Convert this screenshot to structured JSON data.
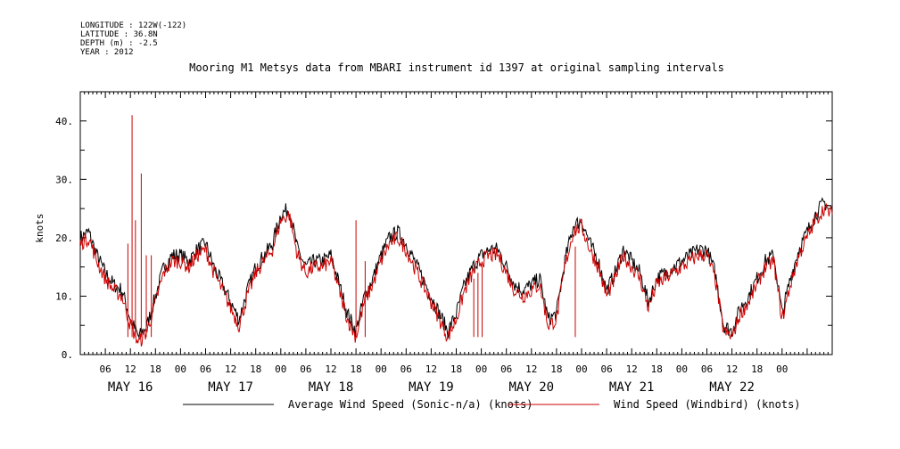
{
  "meta": [
    "LONGITUDE : 122W(-122)",
    "LATITUDE : 36.8N",
    "DEPTH (m) : -2.5",
    "YEAR : 2012"
  ],
  "chart_data": {
    "type": "line",
    "title": "Mooring M1 Metsys data from MBARI instrument id 1397 at original sampling intervals",
    "ylabel": "knots",
    "xlabel": "",
    "ylim": [
      0,
      45
    ],
    "xlim_hours": [
      0,
      180
    ],
    "x_unit": "hours since MAY 16 00",
    "yticks": [
      0,
      10,
      20,
      30,
      40
    ],
    "ytick_labels": [
      "0.",
      "10.",
      "20.",
      "30.",
      "40."
    ],
    "xticks_hour_labels": [
      "06",
      "12",
      "18",
      "00",
      "06",
      "12",
      "18",
      "00",
      "06",
      "12",
      "18",
      "00",
      "06",
      "12",
      "18",
      "00",
      "06",
      "12",
      "18",
      "00",
      "06",
      "12",
      "18",
      "00",
      "06",
      "12",
      "18",
      "00"
    ],
    "day_labels": [
      "MAY 16",
      "MAY 17",
      "MAY 18",
      "MAY 19",
      "MAY 20",
      "MAY 21",
      "MAY 22"
    ],
    "grid": false,
    "legend_position": "bottom",
    "series": [
      {
        "name": "Average Wind Speed (Sonic-n/a) (knots)",
        "color": "#000000",
        "x": [
          0,
          2,
          4,
          6,
          8,
          10,
          12,
          14,
          16,
          18,
          20,
          22,
          24,
          26,
          28,
          30,
          32,
          34,
          36,
          38,
          40,
          42,
          44,
          46,
          48,
          50,
          52,
          54,
          56,
          58,
          60,
          62,
          64,
          66,
          68,
          70,
          72,
          74,
          76,
          78,
          80,
          82,
          84,
          86,
          88,
          90,
          92,
          94,
          96,
          98,
          100,
          102,
          104,
          106,
          108,
          110,
          112,
          114,
          116,
          118,
          120,
          122,
          124,
          126,
          128,
          130,
          132,
          134,
          136,
          138,
          140,
          142,
          144,
          146,
          148,
          150,
          152,
          154,
          156,
          158,
          160,
          162,
          164,
          166,
          168,
          170,
          172,
          174,
          176,
          178,
          180
        ],
        "y": [
          20,
          21,
          17,
          14,
          12,
          11,
          6,
          3,
          5,
          10,
          15,
          17,
          17,
          16,
          18,
          19,
          15,
          12,
          9,
          6,
          11,
          15,
          17,
          19,
          24,
          25,
          18,
          15,
          16,
          16,
          17,
          12,
          7,
          4,
          10,
          13,
          17,
          20,
          21,
          19,
          16,
          13,
          10,
          7,
          4,
          7,
          12,
          15,
          17,
          18,
          18,
          15,
          12,
          11,
          12,
          13,
          6,
          7,
          16,
          22,
          23,
          19,
          16,
          11,
          14,
          18,
          16,
          14,
          9,
          13,
          14,
          15,
          16,
          17,
          18,
          18,
          14,
          5,
          4,
          8,
          10,
          13,
          16,
          17,
          7,
          13,
          18,
          21,
          24,
          26,
          25
        ]
      },
      {
        "name": "Wind Speed (Windbird) (knots)",
        "color": "#cc0000",
        "x": [
          0,
          2,
          4,
          6,
          8,
          10,
          12,
          14,
          16,
          18,
          20,
          22,
          24,
          26,
          28,
          30,
          32,
          34,
          36,
          38,
          40,
          42,
          44,
          46,
          48,
          50,
          52,
          54,
          56,
          58,
          60,
          62,
          64,
          66,
          68,
          70,
          72,
          74,
          76,
          78,
          80,
          82,
          84,
          86,
          88,
          90,
          92,
          94,
          96,
          98,
          100,
          102,
          104,
          106,
          108,
          110,
          112,
          114,
          116,
          118,
          120,
          122,
          124,
          126,
          128,
          130,
          132,
          134,
          136,
          138,
          140,
          142,
          144,
          146,
          148,
          150,
          152,
          154,
          156,
          158,
          160,
          162,
          164,
          166,
          168,
          170,
          172,
          174,
          176,
          178,
          180
        ],
        "y": [
          19,
          20,
          16,
          13,
          11,
          10,
          5,
          2,
          4,
          9,
          14,
          16,
          16,
          15,
          17,
          18,
          14,
          11,
          8,
          5,
          10,
          14,
          16,
          18,
          23,
          24,
          17,
          14,
          15,
          15,
          16,
          11,
          6,
          3,
          9,
          12,
          16,
          19,
          20,
          18,
          15,
          12,
          9,
          6,
          3,
          6,
          11,
          14,
          16,
          17,
          17,
          14,
          11,
          10,
          11,
          12,
          5,
          6,
          15,
          21,
          22,
          18,
          15,
          10,
          13,
          17,
          15,
          13,
          8,
          12,
          13,
          14,
          15,
          16,
          17,
          17,
          13,
          4,
          3,
          7,
          9,
          12,
          15,
          16,
          6,
          12,
          17,
          20,
          23,
          25,
          24
        ],
        "spikes": [
          {
            "x": 11.4,
            "y": 19
          },
          {
            "x": 12.4,
            "y": 41
          },
          {
            "x": 13.2,
            "y": 23
          },
          {
            "x": 14.6,
            "y": 31
          },
          {
            "x": 15.8,
            "y": 17
          },
          {
            "x": 17.0,
            "y": 17
          },
          {
            "x": 66.0,
            "y": 23
          },
          {
            "x": 68.2,
            "y": 16
          },
          {
            "x": 94.2,
            "y": 13
          },
          {
            "x": 95.2,
            "y": 14
          },
          {
            "x": 96.2,
            "y": 15
          },
          {
            "x": 118.5,
            "y": 18.5
          }
        ]
      }
    ]
  }
}
